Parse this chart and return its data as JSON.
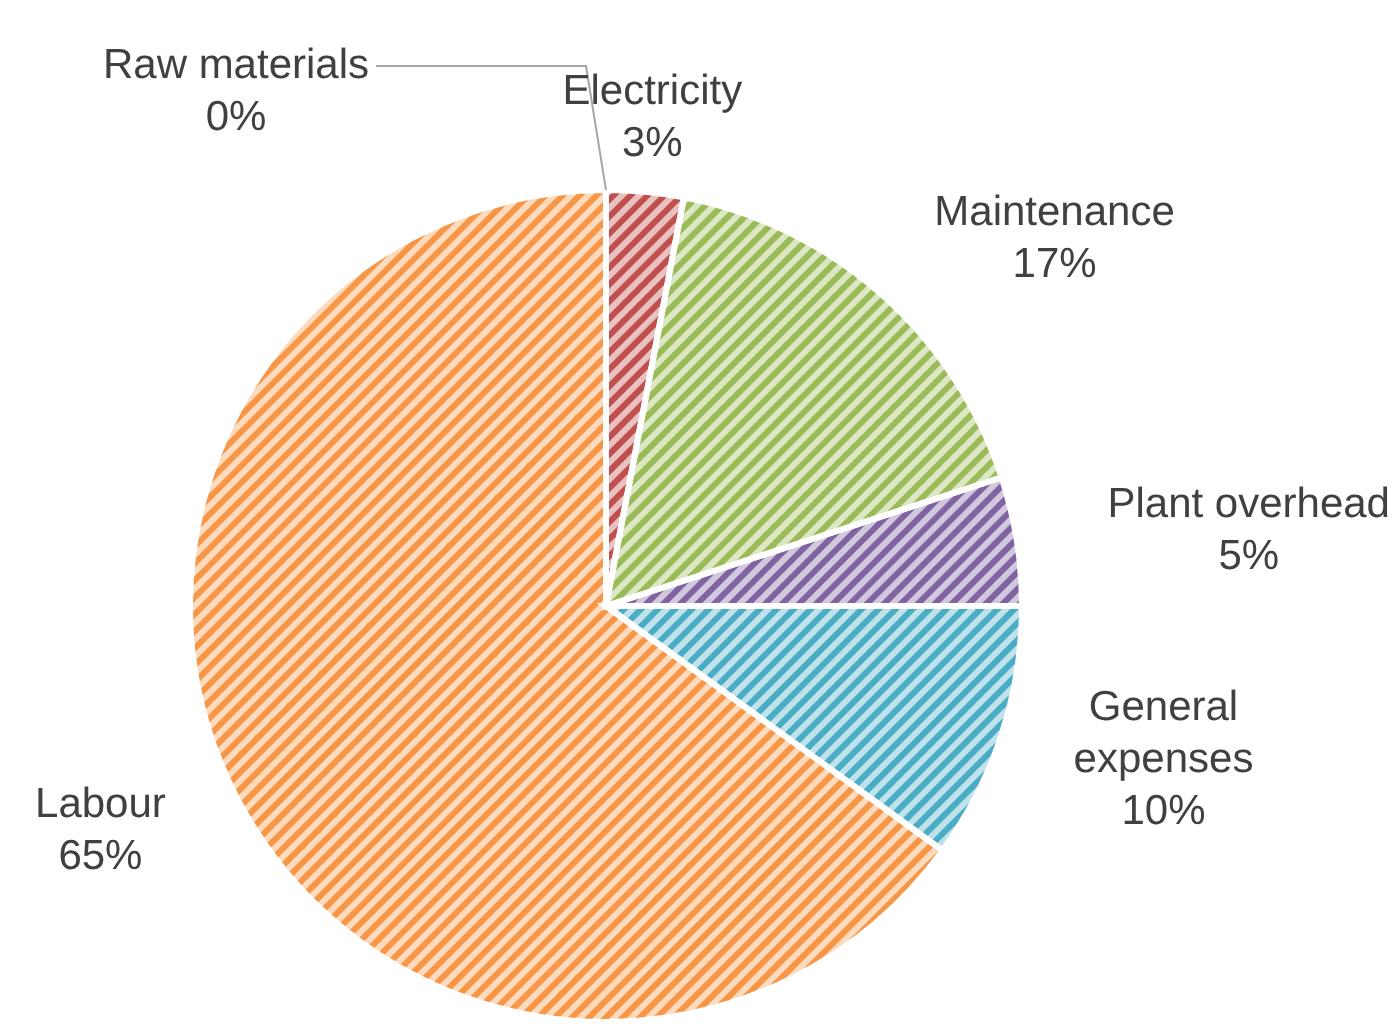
{
  "chart_data": {
    "type": "pie",
    "categories": [
      "Raw materials",
      "Electricity",
      "Maintenance",
      "Plant overhead",
      "General expenses",
      "Labour"
    ],
    "values": [
      0,
      3,
      17,
      5,
      10,
      65
    ],
    "value_labels": [
      "0%",
      "3%",
      "17%",
      "5%",
      "10%",
      "65%"
    ],
    "colors": [
      "#4f81bd",
      "#c0504d",
      "#9bbb59",
      "#8064a2",
      "#4bacc6",
      "#f79646"
    ]
  }
}
